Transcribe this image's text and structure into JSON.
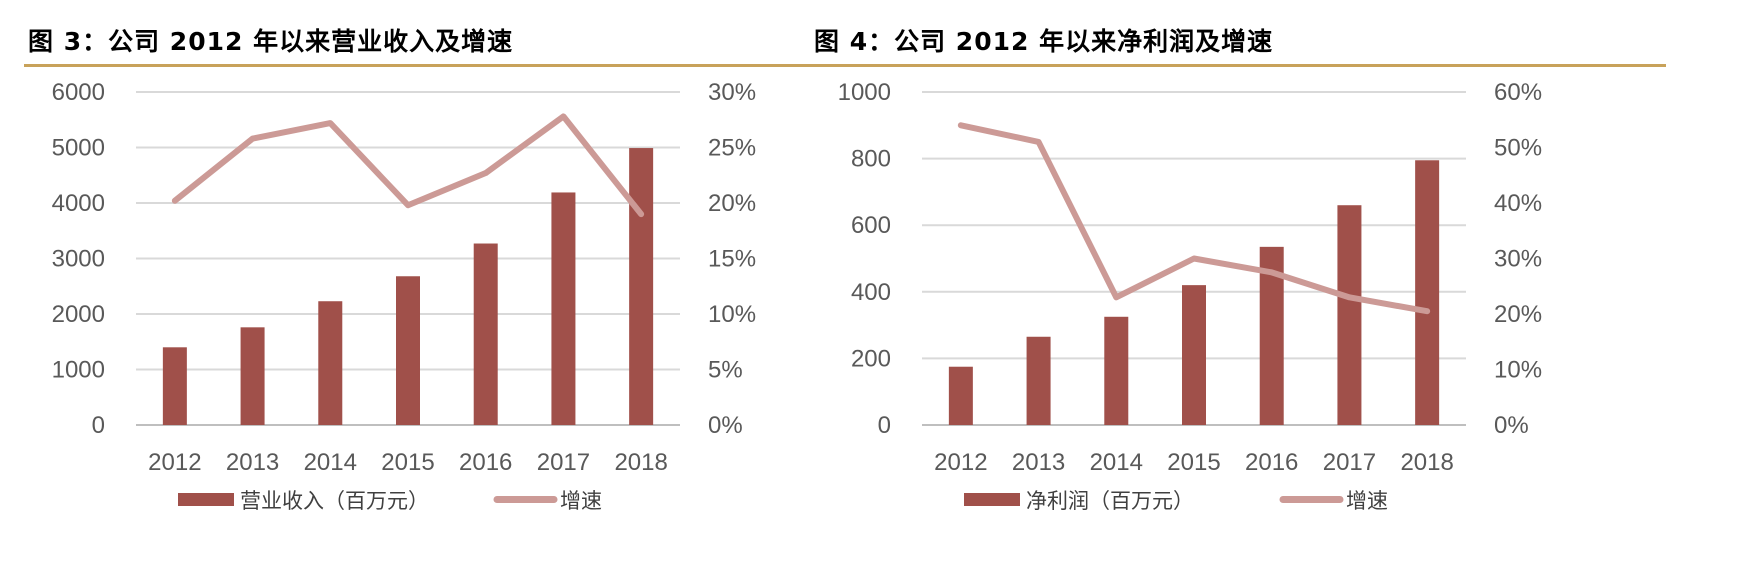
{
  "charts": [
    {
      "title": "图 3：公司 2012 年以来营业收入及增速",
      "chart_data": {
        "type": "bar",
        "categories": [
          "2012",
          "2013",
          "2014",
          "2015",
          "2016",
          "2017",
          "2018"
        ],
        "series": [
          {
            "name": "营业收入（百万元）",
            "type": "bar",
            "axis": "left",
            "color": "#a0504a",
            "values": [
              1400,
              1760,
              2230,
              2680,
              3270,
              4190,
              4990
            ]
          },
          {
            "name": "增速",
            "type": "line",
            "axis": "right",
            "color": "#cc9a96",
            "values": [
              20.2,
              25.8,
              27.2,
              19.8,
              22.7,
              27.8,
              19.0
            ]
          }
        ],
        "y_left": {
          "min": 0,
          "max": 6000,
          "ticks": [
            0,
            1000,
            2000,
            3000,
            4000,
            5000,
            6000
          ],
          "tick_labels": [
            "0",
            "1000",
            "2000",
            "3000",
            "4000",
            "5000",
            "6000"
          ]
        },
        "y_right": {
          "min": 0,
          "max": 30,
          "ticks": [
            0,
            5,
            10,
            15,
            20,
            25,
            30
          ],
          "tick_labels": [
            "0%",
            "5%",
            "10%",
            "15%",
            "20%",
            "25%",
            "30%"
          ]
        },
        "grid": true,
        "legend_position": "bottom"
      }
    },
    {
      "title": "图 4：公司 2012 年以来净利润及增速",
      "chart_data": {
        "type": "bar",
        "categories": [
          "2012",
          "2013",
          "2014",
          "2015",
          "2016",
          "2017",
          "2018"
        ],
        "series": [
          {
            "name": "净利润（百万元）",
            "type": "bar",
            "axis": "left",
            "color": "#a0504a",
            "values": [
              175,
              265,
              325,
              420,
              535,
              660,
              795
            ]
          },
          {
            "name": "增速",
            "type": "line",
            "axis": "right",
            "color": "#cc9a96",
            "values": [
              54,
              51,
              23,
              30,
              27.5,
              23,
              20.5
            ]
          }
        ],
        "y_left": {
          "min": 0,
          "max": 1000,
          "ticks": [
            0,
            200,
            400,
            600,
            800,
            1000
          ],
          "tick_labels": [
            "0",
            "200",
            "400",
            "600",
            "800",
            "1000"
          ]
        },
        "y_right": {
          "min": 0,
          "max": 60,
          "ticks": [
            0,
            10,
            20,
            30,
            40,
            50,
            60
          ],
          "tick_labels": [
            "0%",
            "10%",
            "20%",
            "30%",
            "40%",
            "50%",
            "60%"
          ]
        },
        "grid": true,
        "legend_position": "bottom"
      }
    }
  ]
}
